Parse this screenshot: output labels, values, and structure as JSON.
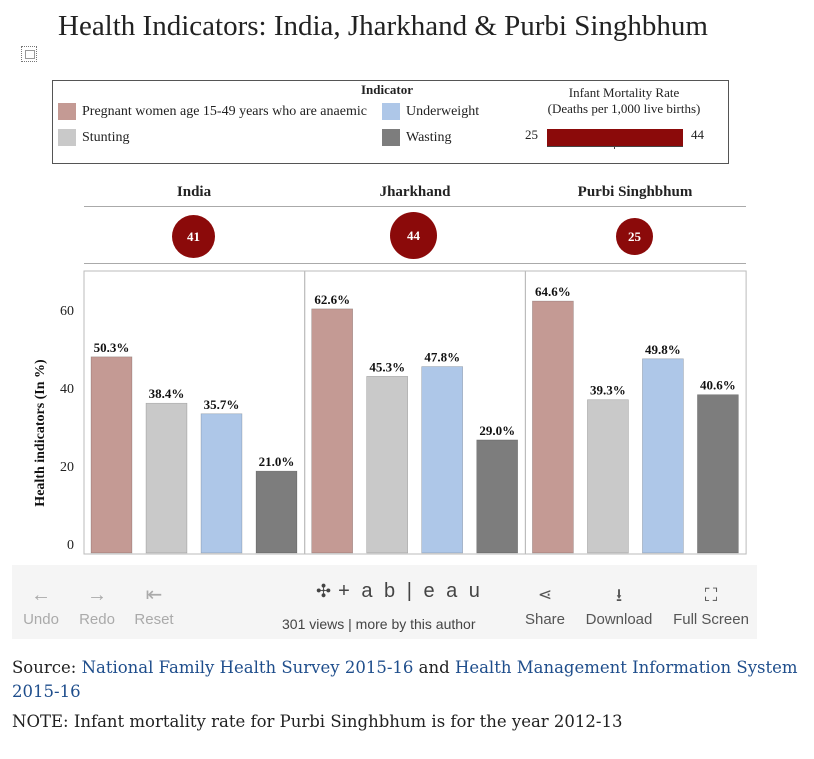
{
  "title": "Health Indicators: India, Jharkhand & Purbi Singhbhum",
  "legend": {
    "heading": "Indicator",
    "items": [
      {
        "label": "Pregnant women age 15-49 years who are anaemic",
        "color": "#c49a94"
      },
      {
        "label": "Underweight",
        "color": "#aec7e8"
      },
      {
        "label": "Stunting",
        "color": "#c9c9c9"
      },
      {
        "label": "Wasting",
        "color": "#7d7d7d"
      }
    ],
    "imr": {
      "title_line1": "Infant Mortality Rate",
      "title_line2": "(Deaths per 1,000 live births)",
      "min": "25",
      "max": "44",
      "color": "#8b0a0a"
    }
  },
  "regions": [
    {
      "name": "India",
      "imr": "41"
    },
    {
      "name": "Jharkhand",
      "imr": "44"
    },
    {
      "name": "Purbi Singhbhum",
      "imr": "25"
    }
  ],
  "chart_data": {
    "type": "bar",
    "ylabel": "Health indicators (In %)",
    "ylim": [
      0,
      72
    ],
    "yticks": [
      0,
      20,
      40,
      60
    ],
    "categories": [
      "India",
      "Jharkhand",
      "Purbi Singhbhum"
    ],
    "series": [
      {
        "name": "Pregnant women age 15-49 years who are anaemic",
        "color": "#c49a94",
        "values": [
          50.3,
          62.6,
          64.6
        ],
        "labels": [
          "50.3%",
          "62.6%",
          "64.6%"
        ]
      },
      {
        "name": "Stunting",
        "color": "#c9c9c9",
        "values": [
          38.4,
          45.3,
          39.3
        ],
        "labels": [
          "38.4%",
          "45.3%",
          "39.3%"
        ]
      },
      {
        "name": "Underweight",
        "color": "#aec7e8",
        "values": [
          35.7,
          47.8,
          49.8
        ],
        "labels": [
          "35.7%",
          "47.8%",
          "49.8%"
        ]
      },
      {
        "name": "Wasting",
        "color": "#7d7d7d",
        "values": [
          21.0,
          29.0,
          40.6
        ],
        "labels": [
          "21.0%",
          "29.0%",
          "40.6%"
        ]
      }
    ],
    "grid": false
  },
  "toolbar": {
    "undo": "Undo",
    "redo": "Redo",
    "reset": "Reset",
    "logo": "+ a b | e a u",
    "stats": "301 views  |  more by this author",
    "share": "Share",
    "download": "Download",
    "fullscreen": "Full Screen"
  },
  "source": {
    "prefix": "Source: ",
    "link1": "National Family Health Survey 2015-16",
    "middle": " and ",
    "link2": "Health Management Information System 2015-16"
  },
  "note": "NOTE: Infant mortality rate for Purbi Singhbhum is for the year 2012-13"
}
